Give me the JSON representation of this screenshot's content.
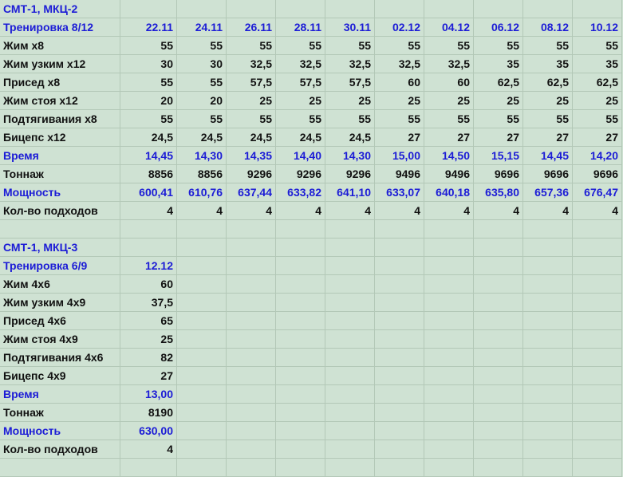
{
  "colors": {
    "background": "#cfe2d3",
    "grid": "#b3c8b7",
    "accent_blue": "#1c1cd6",
    "text": "#111111"
  },
  "sections": [
    {
      "title": "СМТ-1, МКЦ-2",
      "header_label": "Тренировка 8/12",
      "dates": [
        "22.11",
        "24.11",
        "26.11",
        "28.11",
        "30.11",
        "02.12",
        "04.12",
        "06.12",
        "08.12",
        "10.12"
      ],
      "rows": [
        {
          "label": "Жим х8",
          "blue": false,
          "values": [
            "55",
            "55",
            "55",
            "55",
            "55",
            "55",
            "55",
            "55",
            "55",
            "55"
          ]
        },
        {
          "label": "Жим узким х12",
          "blue": false,
          "values": [
            "30",
            "30",
            "32,5",
            "32,5",
            "32,5",
            "32,5",
            "32,5",
            "35",
            "35",
            "35"
          ]
        },
        {
          "label": "Присед х8",
          "blue": false,
          "values": [
            "55",
            "55",
            "57,5",
            "57,5",
            "57,5",
            "60",
            "60",
            "62,5",
            "62,5",
            "62,5"
          ]
        },
        {
          "label": "Жим стоя х12",
          "blue": false,
          "values": [
            "20",
            "20",
            "25",
            "25",
            "25",
            "25",
            "25",
            "25",
            "25",
            "25"
          ]
        },
        {
          "label": "Подтягивания х8",
          "blue": false,
          "values": [
            "55",
            "55",
            "55",
            "55",
            "55",
            "55",
            "55",
            "55",
            "55",
            "55"
          ]
        },
        {
          "label": "Бицепс х12",
          "blue": false,
          "values": [
            "24,5",
            "24,5",
            "24,5",
            "24,5",
            "24,5",
            "27",
            "27",
            "27",
            "27",
            "27"
          ]
        },
        {
          "label": "Время",
          "blue": true,
          "values": [
            "14,45",
            "14,30",
            "14,35",
            "14,40",
            "14,30",
            "15,00",
            "14,50",
            "15,15",
            "14,45",
            "14,20"
          ]
        },
        {
          "label": "Тоннаж",
          "blue": false,
          "values": [
            "8856",
            "8856",
            "9296",
            "9296",
            "9296",
            "9496",
            "9496",
            "9696",
            "9696",
            "9696"
          ]
        },
        {
          "label": "Мощность",
          "blue": true,
          "values": [
            "600,41",
            "610,76",
            "637,44",
            "633,82",
            "641,10",
            "633,07",
            "640,18",
            "635,80",
            "657,36",
            "676,47"
          ]
        },
        {
          "label": "Кол-во подходов",
          "blue": false,
          "values": [
            "4",
            "4",
            "4",
            "4",
            "4",
            "4",
            "4",
            "4",
            "4",
            "4"
          ]
        }
      ]
    },
    {
      "title": "СМТ-1, МКЦ-3",
      "header_label": "Тренировка 6/9",
      "dates": [
        "12.12"
      ],
      "rows": [
        {
          "label": "Жим 4х6",
          "blue": false,
          "values": [
            "60"
          ]
        },
        {
          "label": "Жим узким 4х9",
          "blue": false,
          "values": [
            "37,5"
          ]
        },
        {
          "label": "Присед 4х6",
          "blue": false,
          "values": [
            "65"
          ]
        },
        {
          "label": "Жим стоя 4х9",
          "blue": false,
          "values": [
            "25"
          ]
        },
        {
          "label": "Подтягивания 4х6",
          "blue": false,
          "values": [
            "82"
          ]
        },
        {
          "label": "Бицепс 4х9",
          "blue": false,
          "values": [
            "27"
          ]
        },
        {
          "label": "Время",
          "blue": true,
          "values": [
            "13,00"
          ]
        },
        {
          "label": "Тоннаж",
          "blue": false,
          "values": [
            "8190"
          ]
        },
        {
          "label": "Мощность",
          "blue": true,
          "values": [
            "630,00"
          ]
        },
        {
          "label": "Кол-во подходов",
          "blue": false,
          "values": [
            "4"
          ]
        }
      ]
    }
  ]
}
